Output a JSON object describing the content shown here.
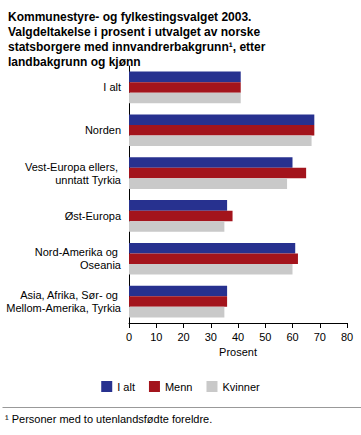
{
  "chart_data": {
    "type": "bar",
    "orientation": "horizontal",
    "title": "Kommunestyre- og fylkestingsvalget 2003. Valgdeltakelse i prosent i utvalget av norske statsborgere med innvandrerbakgrunn¹, etter landbakgrunn og kjønn",
    "x_label": "Prosent",
    "annotations": [
      "¹ Personer med to utenlandsfødte foreldre."
    ],
    "categories": [
      "I alt",
      "Norden",
      "Vest-Europa ellers, unntatt Tyrkia",
      "Øst-Europa",
      "Nord-Amerika og Oseania",
      "Asia, Afrika, Sør- og Mellom-Amerika, Tyrkia"
    ],
    "series": [
      {
        "name": "I alt",
        "color": "#27318f",
        "values": [
          41,
          68,
          60,
          36,
          61,
          36
        ]
      },
      {
        "name": "Menn",
        "color": "#a3141c",
        "values": [
          41,
          68,
          65,
          38,
          62,
          36
        ]
      },
      {
        "name": "Kvinner",
        "color": "#c9c9c9",
        "values": [
          41,
          67,
          58,
          35,
          60,
          35
        ]
      }
    ],
    "xlim": [
      0,
      80
    ],
    "xticks": [
      0,
      10,
      20,
      30,
      40,
      50,
      60,
      70,
      80
    ],
    "grid": false,
    "legend": "bottom"
  }
}
